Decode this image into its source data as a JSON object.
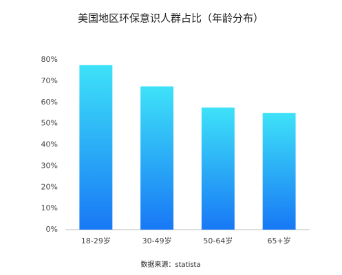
{
  "chart_data": {
    "type": "bar",
    "title": "美国地区环保意识人群占比（年龄分布）",
    "categories": [
      "18-29岁",
      "30-49岁",
      "50-64岁",
      "65+岁"
    ],
    "values": [
      77.5,
      67.5,
      57.5,
      55
    ],
    "gradient": [
      "#3ee2f8",
      "#1878f5"
    ],
    "ylim": [
      0,
      80
    ],
    "yticks": [
      {
        "value": 0,
        "label": "0%"
      },
      {
        "value": 10,
        "label": "10%"
      },
      {
        "value": 20,
        "label": "20%"
      },
      {
        "value": 30,
        "label": "30%"
      },
      {
        "value": 40,
        "label": "40%"
      },
      {
        "value": 50,
        "label": "50%"
      },
      {
        "value": 60,
        "label": "60%"
      },
      {
        "value": 70,
        "label": "70%"
      },
      {
        "value": 80,
        "label": "80%"
      }
    ],
    "source": "数据来源：statista"
  }
}
